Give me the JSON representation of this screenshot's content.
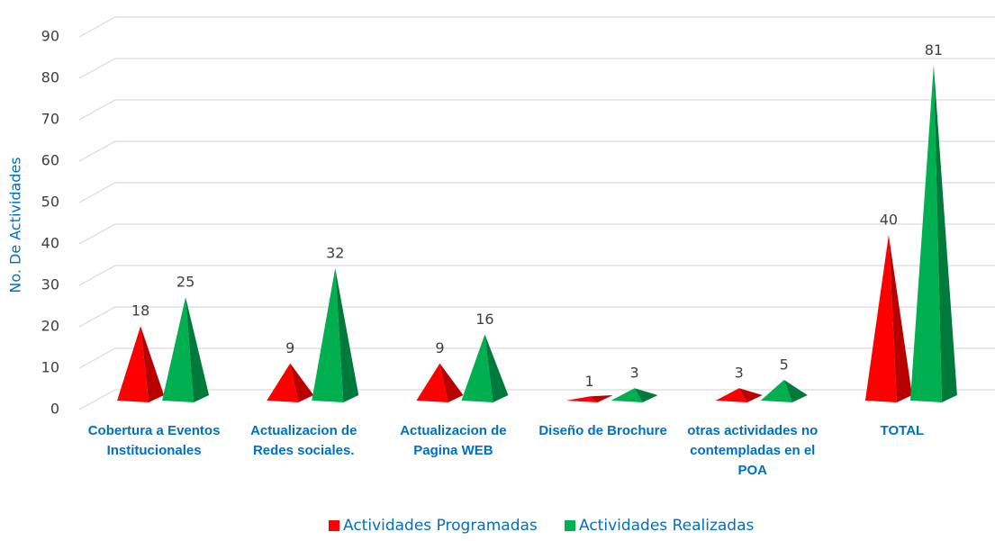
{
  "chart_data": {
    "type": "bar",
    "y_label": "No. De Actividades",
    "categories": [
      "Cobertura a Eventos Institucionales",
      "Actualizacion de Redes sociales.",
      "Actualizacion de Pagina WEB",
      "Diseño de Brochure",
      "otras actividades no contempladas en el POA",
      "TOTAL"
    ],
    "series": [
      {
        "name": "Actividades Programadas",
        "color": "#ff0000",
        "values": [
          18,
          9,
          9,
          1,
          3,
          40
        ]
      },
      {
        "name": "Actividades Realizadas",
        "color": "#00b050",
        "values": [
          25,
          32,
          16,
          3,
          5,
          81
        ]
      }
    ],
    "ylim": [
      0,
      90
    ],
    "yticks": [
      0,
      10,
      20,
      30,
      40,
      50,
      60,
      70,
      80,
      90
    ],
    "grid": true,
    "legend": "bottom"
  }
}
